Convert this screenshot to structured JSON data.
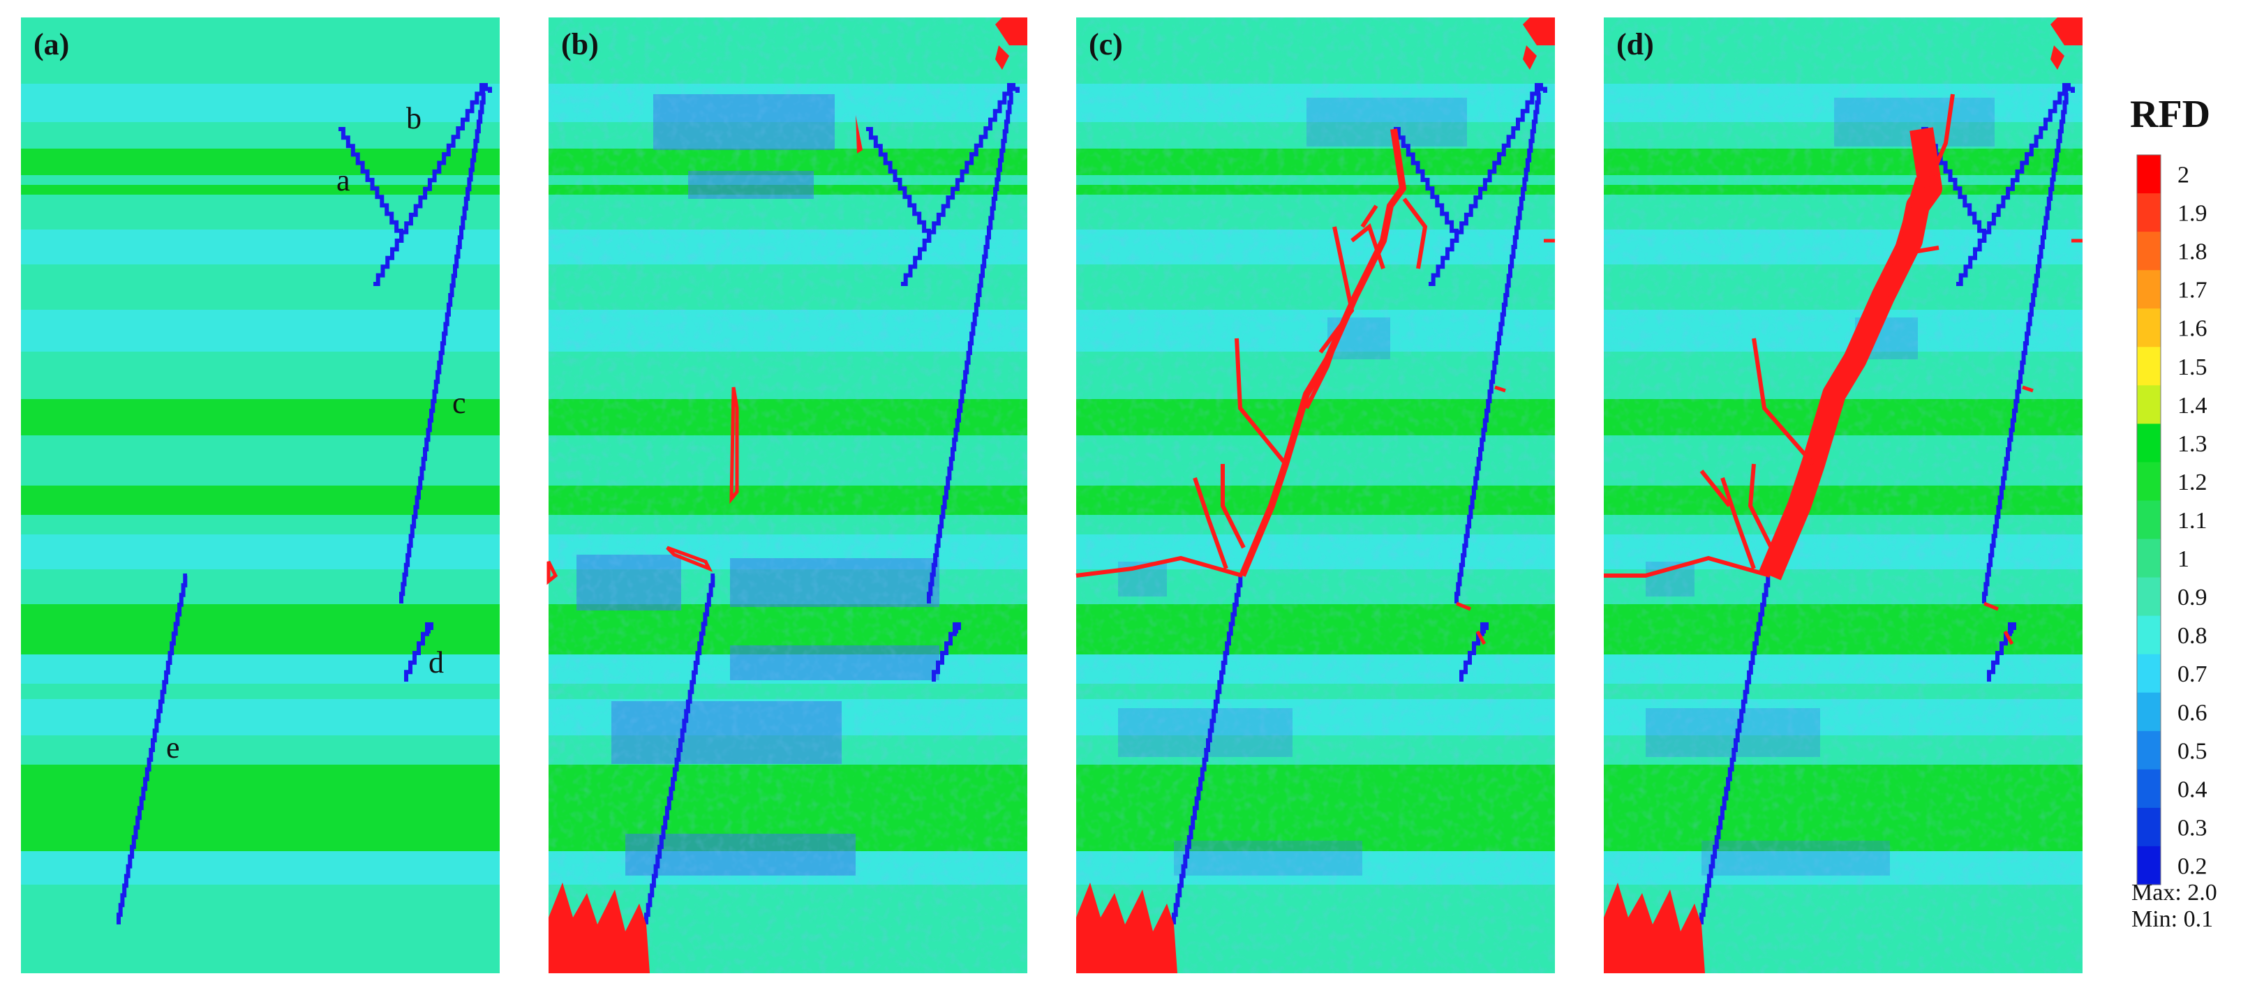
{
  "panels": [
    {
      "id": "a",
      "label": "(a)"
    },
    {
      "id": "b",
      "label": "(b)"
    },
    {
      "id": "c",
      "label": "(c)"
    },
    {
      "id": "d",
      "label": "(d)"
    }
  ],
  "fracture_labels": [
    "a",
    "b",
    "c",
    "d",
    "e"
  ],
  "legend": {
    "title": "RFD",
    "ticks": [
      "2",
      "1.9",
      "1.8",
      "1.7",
      "1.6",
      "1.5",
      "1.4",
      "1.3",
      "1.2",
      "1.1",
      "1",
      "0.9",
      "0.8",
      "0.7",
      "0.6",
      "0.5",
      "0.4",
      "0.3",
      "0.2"
    ],
    "colors": [
      "#ff0000",
      "#ff3a1a",
      "#ff6a1a",
      "#ff9a1a",
      "#ffc21a",
      "#ffee22",
      "#c8f020",
      "#00dd22",
      "#18e030",
      "#22e058",
      "#33e288",
      "#40e6b0",
      "#40eee0",
      "#33d8f8",
      "#22b0f0",
      "#1a86ec",
      "#1060e6",
      "#0a3ae0",
      "#0818e0"
    ],
    "max_label": "Max:  2.0",
    "min_label": "Min:  0.1"
  },
  "colors": {
    "host_light": "#30e8b0",
    "host_green": "#11dd33",
    "host_cyan": "#3ae8e0",
    "low_blue": "#3a7ae8",
    "fracture": "#1a1aee",
    "failure": "#ff1a1a"
  }
}
